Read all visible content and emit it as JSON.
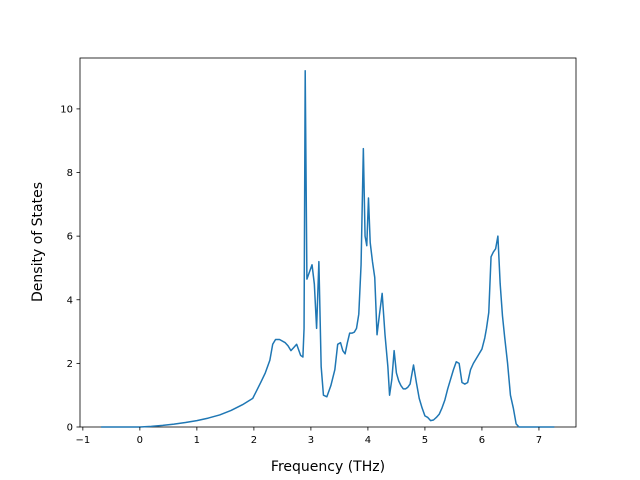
{
  "chart_data": {
    "type": "line",
    "title": "",
    "xlabel": "Frequency (THz)",
    "ylabel": "Density of States",
    "xlim": [
      -1.05,
      7.65
    ],
    "ylim": [
      0,
      11.6
    ],
    "xticks": [
      -1,
      0,
      1,
      2,
      3,
      4,
      5,
      6,
      7
    ],
    "yticks": [
      0,
      2,
      4,
      6,
      8,
      10
    ],
    "grid": false,
    "legend": "none",
    "series": [
      {
        "color": "#1f77b4",
        "x": [
          -0.68,
          -0.5,
          -0.3,
          -0.1,
          0.0,
          0.2,
          0.4,
          0.6,
          0.8,
          1.0,
          1.2,
          1.4,
          1.6,
          1.8,
          1.98,
          2.05,
          2.12,
          2.2,
          2.28,
          2.33,
          2.38,
          2.45,
          2.55,
          2.6,
          2.65,
          2.7,
          2.75,
          2.82,
          2.86,
          2.88,
          2.9,
          2.93,
          2.98,
          3.02,
          3.06,
          3.1,
          3.14,
          3.18,
          3.22,
          3.28,
          3.35,
          3.42,
          3.47,
          3.52,
          3.56,
          3.6,
          3.64,
          3.68,
          3.72,
          3.76,
          3.8,
          3.84,
          3.88,
          3.92,
          3.95,
          3.98,
          4.01,
          4.04,
          4.08,
          4.12,
          4.16,
          4.2,
          4.25,
          4.3,
          4.35,
          4.38,
          4.42,
          4.46,
          4.5,
          4.54,
          4.58,
          4.62,
          4.66,
          4.7,
          4.74,
          4.8,
          4.85,
          4.9,
          4.95,
          5.0,
          5.05,
          5.1,
          5.15,
          5.2,
          5.25,
          5.3,
          5.35,
          5.4,
          5.45,
          5.5,
          5.55,
          5.6,
          5.65,
          5.7,
          5.75,
          5.8,
          5.85,
          5.9,
          5.95,
          6.0,
          6.05,
          6.08,
          6.12,
          6.16,
          6.2,
          6.24,
          6.28,
          6.32,
          6.36,
          6.4,
          6.45,
          6.5,
          6.55,
          6.6,
          6.65,
          6.7,
          6.8,
          7.0,
          7.27
        ],
        "y": [
          0,
          0,
          0,
          0,
          0,
          0.02,
          0.05,
          0.09,
          0.14,
          0.2,
          0.28,
          0.38,
          0.52,
          0.7,
          0.9,
          1.15,
          1.4,
          1.7,
          2.1,
          2.6,
          2.75,
          2.75,
          2.65,
          2.55,
          2.4,
          2.5,
          2.6,
          2.25,
          2.2,
          3.1,
          11.2,
          4.65,
          4.9,
          5.1,
          4.5,
          3.1,
          5.2,
          1.9,
          1.0,
          0.95,
          1.3,
          1.8,
          2.6,
          2.65,
          2.4,
          2.3,
          2.65,
          2.95,
          2.95,
          2.98,
          3.1,
          3.55,
          5.1,
          8.75,
          6.0,
          5.7,
          7.2,
          5.8,
          5.2,
          4.7,
          2.9,
          3.5,
          4.2,
          2.9,
          1.9,
          1.0,
          1.5,
          2.4,
          1.7,
          1.45,
          1.3,
          1.2,
          1.2,
          1.25,
          1.35,
          1.95,
          1.4,
          0.9,
          0.6,
          0.35,
          0.3,
          0.2,
          0.22,
          0.3,
          0.4,
          0.6,
          0.85,
          1.2,
          1.5,
          1.8,
          2.05,
          2.0,
          1.4,
          1.35,
          1.4,
          1.8,
          2.0,
          2.15,
          2.3,
          2.45,
          2.8,
          3.1,
          3.6,
          5.35,
          5.5,
          5.6,
          6.0,
          4.5,
          3.5,
          2.8,
          2.0,
          1.0,
          0.6,
          0.1,
          0,
          0,
          0,
          0,
          0
        ]
      }
    ]
  }
}
